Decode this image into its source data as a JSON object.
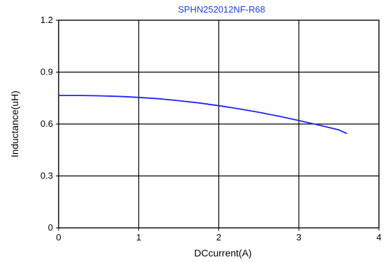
{
  "chart_data": {
    "type": "line",
    "title": "SPHN252012NF-R68",
    "xlabel": "DCcurrent(A)",
    "ylabel": "Inductance(uH)",
    "xlim": [
      0,
      4
    ],
    "ylim": [
      0,
      1.2
    ],
    "x_ticks": [
      0,
      1,
      2,
      3,
      4
    ],
    "y_ticks": [
      0,
      0.3,
      0.6,
      0.9,
      1.2
    ],
    "x_tick_labels": [
      "0",
      "1",
      "2",
      "3",
      "4"
    ],
    "y_tick_labels": [
      "0",
      "0.3",
      "0.6",
      "0.9",
      "1.2"
    ],
    "grid": true,
    "series": [
      {
        "color": "#1f1fff",
        "x": [
          0,
          0.25,
          0.5,
          0.75,
          1.0,
          1.25,
          1.5,
          1.75,
          2.0,
          2.25,
          2.5,
          2.75,
          3.0,
          3.25,
          3.5,
          3.6
        ],
        "y": [
          0.765,
          0.765,
          0.763,
          0.76,
          0.754,
          0.746,
          0.735,
          0.722,
          0.706,
          0.688,
          0.668,
          0.645,
          0.62,
          0.594,
          0.566,
          0.545
        ]
      }
    ]
  },
  "colors": {
    "title": "#1a3ee6",
    "curve": "#1f1fff",
    "grid": "#000000"
  }
}
